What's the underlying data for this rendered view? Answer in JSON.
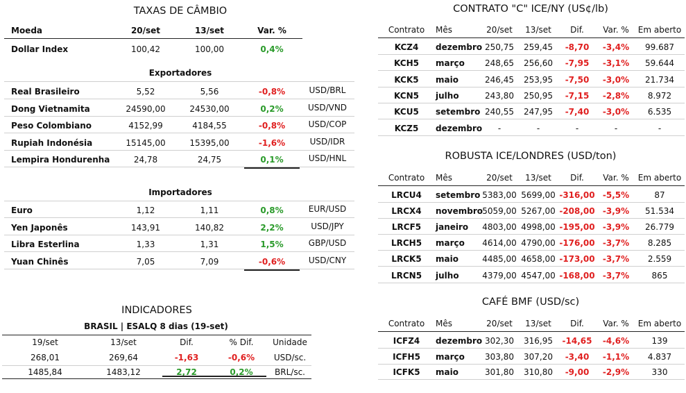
{
  "cambio": {
    "title": "TAXAS DE CÂMBIO",
    "headers": [
      "Moeda",
      "20/set",
      "13/set",
      "Var. %"
    ],
    "dollar_index": {
      "name": "Dollar Index",
      "v1": "100,42",
      "v2": "100,00",
      "var": "0,4%"
    },
    "exportadores_title": "Exportadores",
    "exportadores": [
      {
        "name": "Real Brasileiro",
        "v1": "5,52",
        "v2": "5,56",
        "var": "-0,8%",
        "pair": "USD/BRL"
      },
      {
        "name": "Dong Vietnamita",
        "v1": "24590,00",
        "v2": "24530,00",
        "var": "0,2%",
        "pair": "USD/VND"
      },
      {
        "name": "Peso Colombiano",
        "v1": "4152,99",
        "v2": "4184,55",
        "var": "-0,8%",
        "pair": "USD/COP"
      },
      {
        "name": "Rupiah Indonésia",
        "v1": "15145,00",
        "v2": "15395,00",
        "var": "-1,6%",
        "pair": "USD/IDR"
      },
      {
        "name": "Lempira Hondurenha",
        "v1": "24,78",
        "v2": "24,75",
        "var": "0,1%",
        "pair": "USD/HNL"
      }
    ],
    "importadores_title": "Importadores",
    "importadores": [
      {
        "name": "Euro",
        "v1": "1,12",
        "v2": "1,11",
        "var": "0,8%",
        "pair": "EUR/USD"
      },
      {
        "name": "Yen Japonês",
        "v1": "143,91",
        "v2": "140,82",
        "var": "2,2%",
        "pair": "USD/JPY"
      },
      {
        "name": "Libra Esterlina",
        "v1": "1,33",
        "v2": "1,31",
        "var": "1,5%",
        "pair": "GBP/USD"
      },
      {
        "name": "Yuan Chinês",
        "v1": "7,05",
        "v2": "7,09",
        "var": "-0,6%",
        "pair": "USD/CNY"
      }
    ]
  },
  "indicadores": {
    "title": "INDICADORES",
    "subtitle": "BRASIL | ESALQ 8 dias (19-set)",
    "headers": [
      "19/set",
      "13/set",
      "Dif.",
      "% Dif.",
      "Unidade"
    ],
    "rows": [
      {
        "v1": "268,01",
        "v2": "269,64",
        "dif": "-1,63",
        "pdif": "-0,6%",
        "unit": "USD/sc."
      },
      {
        "v1": "1485,84",
        "v2": "1483,12",
        "dif": "2,72",
        "pdif": "0,2%",
        "unit": "BRL/sc."
      }
    ]
  },
  "ice_ny": {
    "title": "CONTRATO \"C\" ICE/NY (US¢/lb)",
    "headers": [
      "Contrato",
      "Mês",
      "20/set",
      "13/set",
      "Dif.",
      "Var. %",
      "Em aberto"
    ],
    "rows": [
      {
        "c": "KCZ4",
        "m": "dezembro",
        "v1": "250,75",
        "v2": "259,45",
        "d": "-8,70",
        "p": "-3,4%",
        "a": "99.687"
      },
      {
        "c": "KCH5",
        "m": "março",
        "v1": "248,65",
        "v2": "256,60",
        "d": "-7,95",
        "p": "-3,1%",
        "a": "59.644"
      },
      {
        "c": "KCK5",
        "m": "maio",
        "v1": "246,45",
        "v2": "253,95",
        "d": "-7,50",
        "p": "-3,0%",
        "a": "21.734"
      },
      {
        "c": "KCN5",
        "m": "julho",
        "v1": "243,80",
        "v2": "250,95",
        "d": "-7,15",
        "p": "-2,8%",
        "a": "8.972"
      },
      {
        "c": "KCU5",
        "m": "setembro",
        "v1": "240,55",
        "v2": "247,95",
        "d": "-7,40",
        "p": "-3,0%",
        "a": "6.535"
      },
      {
        "c": "KCZ5",
        "m": "dezembro",
        "v1": "-",
        "v2": "-",
        "d": "-",
        "p": "-",
        "a": "-"
      }
    ]
  },
  "robusta": {
    "title": "ROBUSTA ICE/LONDRES (USD/ton)",
    "headers": [
      "Contrato",
      "Mês",
      "20/set",
      "13/set",
      "Dif.",
      "Var. %",
      "Em aberto"
    ],
    "rows": [
      {
        "c": "LRCU4",
        "m": "setembro",
        "v1": "5383,00",
        "v2": "5699,00",
        "d": "-316,00",
        "p": "-5,5%",
        "a": "87"
      },
      {
        "c": "LRCX4",
        "m": "novembro",
        "v1": "5059,00",
        "v2": "5267,00",
        "d": "-208,00",
        "p": "-3,9%",
        "a": "51.534"
      },
      {
        "c": "LRCF5",
        "m": "janeiro",
        "v1": "4803,00",
        "v2": "4998,00",
        "d": "-195,00",
        "p": "-3,9%",
        "a": "26.779"
      },
      {
        "c": "LRCH5",
        "m": "março",
        "v1": "4614,00",
        "v2": "4790,00",
        "d": "-176,00",
        "p": "-3,7%",
        "a": "8.285"
      },
      {
        "c": "LRCK5",
        "m": "maio",
        "v1": "4485,00",
        "v2": "4658,00",
        "d": "-173,00",
        "p": "-3,7%",
        "a": "2.559"
      },
      {
        "c": "LRCN5",
        "m": "julho",
        "v1": "4379,00",
        "v2": "4547,00",
        "d": "-168,00",
        "p": "-3,7%",
        "a": "865"
      }
    ]
  },
  "bmf": {
    "title": "CAFÉ BMF (USD/sc)",
    "headers": [
      "Contrato",
      "Mês",
      "20/set",
      "13/set",
      "Dif.",
      "Var. %",
      "Em aberto"
    ],
    "rows": [
      {
        "c": "ICFZ4",
        "m": "dezembro",
        "v1": "302,30",
        "v2": "316,95",
        "d": "-14,65",
        "p": "-4,6%",
        "a": "139"
      },
      {
        "c": "ICFH5",
        "m": "março",
        "v1": "303,80",
        "v2": "307,20",
        "d": "-3,40",
        "p": "-1,1%",
        "a": "4.837"
      },
      {
        "c": "ICFK5",
        "m": "maio",
        "v1": "301,80",
        "v2": "310,80",
        "d": "-9,00",
        "p": "-2,9%",
        "a": "330"
      }
    ]
  }
}
